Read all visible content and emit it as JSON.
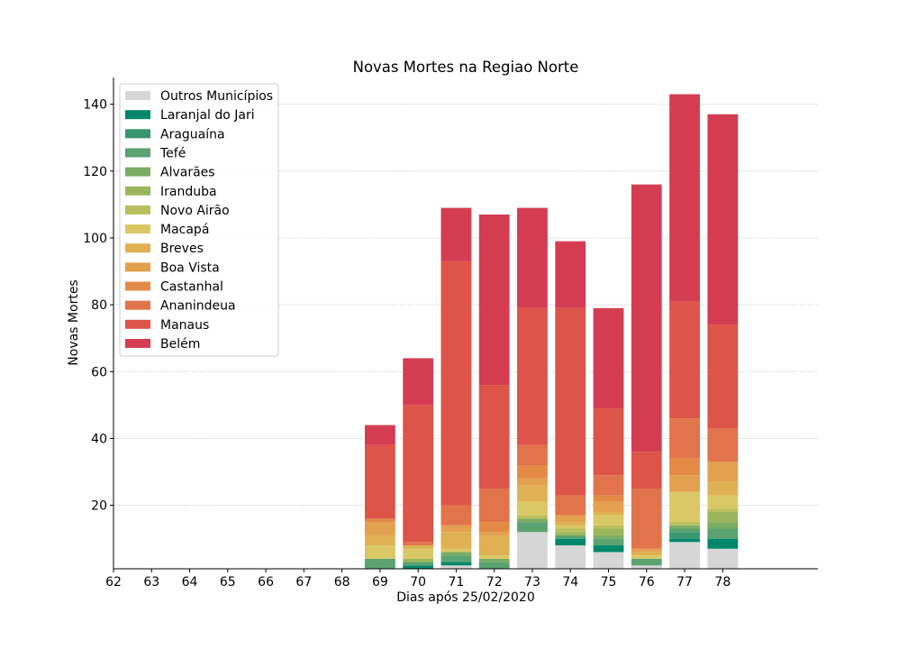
{
  "chart_data": {
    "type": "bar",
    "stacked": true,
    "title": "Novas Mortes na Regiao Norte",
    "xlabel": "Dias após 25/02/2020",
    "ylabel": "Novas Mortes",
    "xlim": [
      62,
      80.5
    ],
    "ylim": [
      1,
      148
    ],
    "x_ticks": [
      62,
      63,
      64,
      65,
      66,
      67,
      68,
      69,
      70,
      71,
      72,
      73,
      74,
      75,
      76,
      77,
      78
    ],
    "y_ticks": [
      20,
      40,
      60,
      80,
      100,
      120,
      140
    ],
    "grid": "horizontal dotted",
    "legend_position": "top-left",
    "x": [
      69,
      70,
      71,
      72,
      73,
      74,
      75,
      76,
      77,
      78
    ],
    "series": [
      {
        "name": "Outros Municípios",
        "color": "#d6d6d6",
        "values": [
          0,
          1,
          2,
          1,
          12,
          8,
          6,
          2,
          9,
          7
        ]
      },
      {
        "name": "Laranjal do Jari",
        "color": "#00876c",
        "values": [
          1,
          1,
          1,
          0,
          0,
          2,
          2,
          0,
          1,
          3
        ]
      },
      {
        "name": "Araguaína",
        "color": "#37966e",
        "values": [
          0,
          0,
          0,
          0,
          0,
          0,
          0,
          0,
          2,
          0
        ]
      },
      {
        "name": "Tefé",
        "color": "#5aa26f",
        "values": [
          3,
          1,
          2,
          2,
          3,
          1,
          2,
          2,
          1,
          3
        ]
      },
      {
        "name": "Alvarães",
        "color": "#7aac63",
        "values": [
          0,
          0,
          1,
          1,
          1,
          0,
          1,
          0,
          1,
          2
        ]
      },
      {
        "name": "Iranduba",
        "color": "#9bb65a",
        "values": [
          0,
          1,
          0,
          0,
          0,
          1,
          2,
          0,
          0,
          3
        ]
      },
      {
        "name": "Novo Airão",
        "color": "#b9bf5c",
        "values": [
          0,
          0,
          0,
          0,
          1,
          1,
          1,
          0,
          1,
          1
        ]
      },
      {
        "name": "Macapá",
        "color": "#d9c865",
        "values": [
          4,
          3,
          1,
          1,
          4,
          1,
          3,
          1,
          9,
          4
        ]
      },
      {
        "name": "Breves",
        "color": "#dfb152",
        "values": [
          3,
          1,
          5,
          6,
          5,
          1,
          1,
          1,
          0,
          4
        ]
      },
      {
        "name": "Boa Vista",
        "color": "#e3a04f",
        "values": [
          4,
          0,
          2,
          1,
          2,
          2,
          3,
          1,
          5,
          6
        ]
      },
      {
        "name": "Castanhal",
        "color": "#e48a45",
        "values": [
          1,
          0,
          0,
          3,
          4,
          0,
          2,
          0,
          5,
          0
        ]
      },
      {
        "name": "Ananindeua",
        "color": "#e1744b",
        "values": [
          0,
          1,
          6,
          10,
          6,
          6,
          6,
          18,
          12,
          10
        ]
      },
      {
        "name": "Manaus",
        "color": "#dd5448",
        "values": [
          22,
          41,
          73,
          31,
          41,
          56,
          20,
          11,
          35,
          31
        ]
      },
      {
        "name": "Belém",
        "color": "#d43d51",
        "values": [
          6,
          14,
          16,
          51,
          30,
          20,
          30,
          80,
          62,
          63
        ]
      }
    ]
  }
}
